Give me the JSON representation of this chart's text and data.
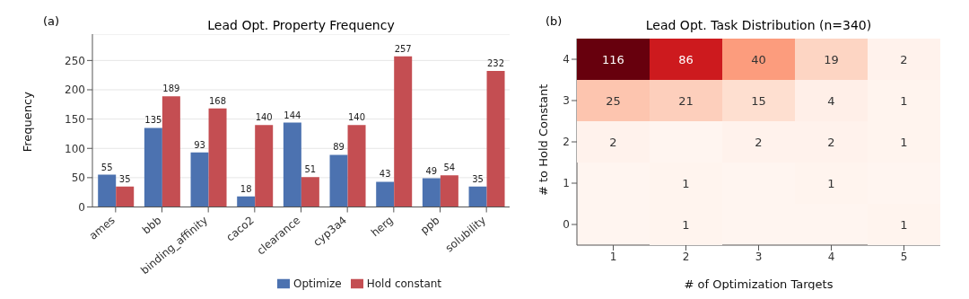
{
  "chart_data": [
    {
      "type": "bar",
      "title": "Lead Opt. Property Frequency",
      "ylabel": "Frequency",
      "annotations": [
        "(a)"
      ],
      "categories": [
        "ames",
        "bbb",
        "binding_affinity",
        "caco2",
        "clearance",
        "cyp3a4",
        "herg",
        "ppb",
        "solubility"
      ],
      "series": [
        {
          "name": "Optimize",
          "color": "#4c72b0",
          "values": [
            55,
            135,
            93,
            18,
            144,
            89,
            43,
            49,
            35
          ]
        },
        {
          "name": "Hold constant",
          "color": "#c44e52",
          "values": [
            35,
            189,
            168,
            140,
            51,
            140,
            257,
            54,
            232
          ]
        }
      ],
      "ylim": [
        0,
        295
      ],
      "yticks": [
        0,
        50,
        100,
        150,
        200,
        250
      ],
      "grid": "y",
      "legend": "bottom",
      "data_labels": true
    },
    {
      "type": "heatmap",
      "title": "Lead Opt. Task Distribution  (n=340)",
      "xlabel": "# of Optimization Targets",
      "ylabel": "# to Hold Constant",
      "annotations": [
        "(b)"
      ],
      "categories": [
        "1",
        "2",
        "3",
        "4",
        "5"
      ],
      "y_categories": [
        "4",
        "3",
        "2",
        "1",
        "0"
      ],
      "cells": [
        [
          116,
          86,
          40,
          19,
          2
        ],
        [
          25,
          21,
          15,
          4,
          1
        ],
        [
          2,
          null,
          2,
          2,
          1
        ],
        [
          null,
          1,
          null,
          1,
          null
        ],
        [
          null,
          1,
          null,
          null,
          1
        ]
      ],
      "data_labels": true
    }
  ]
}
